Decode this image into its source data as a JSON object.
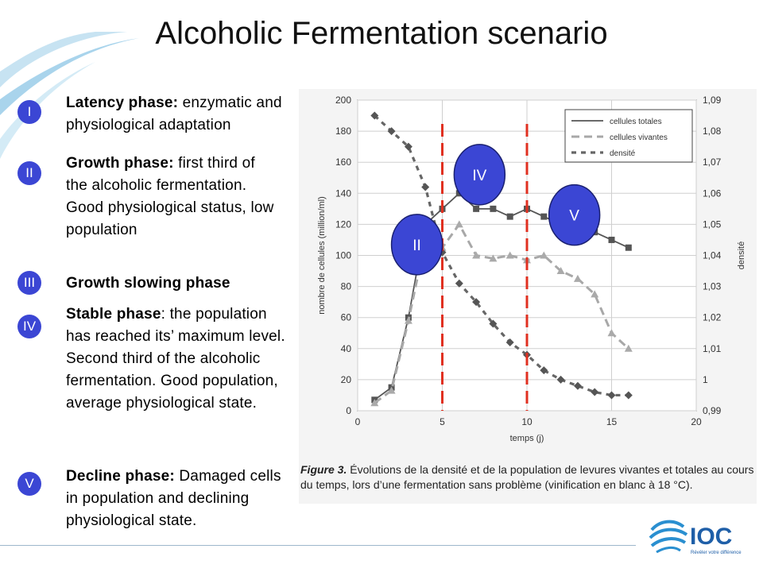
{
  "slide": {
    "title": "Alcoholic Fermentation scenario",
    "colors": {
      "badge": "#3b46d4",
      "red_line": "#e03020",
      "deco_blue": "#b8dcef"
    }
  },
  "phases": [
    {
      "numeral": "I",
      "heading": "Latency phase:",
      "body": " enzymatic and physiological adaptation"
    },
    {
      "numeral": "II",
      "heading": "Growth phase:",
      "body": " first third of the alcoholic fermentation. Good physiological status, low population"
    },
    {
      "numeral": "III",
      "heading": "Growth slowing  phase",
      "body": ""
    },
    {
      "numeral": "IV",
      "heading": "Stable phase",
      "body": ": the population has reached its’ maximum level. Second third of the alcoholic fermentation. Good population, average physiological state."
    },
    {
      "numeral": "V",
      "heading": "Decline phase:",
      "body": " Damaged cells in population and declining physiological state."
    }
  ],
  "figure_caption": {
    "label": "Figure 3.",
    "text": " Évolutions de la densité et de la population de levures vivantes et totales au cours du temps, lors d’une fermentation sans problème (vinification en blanc à 18 °C)."
  },
  "chart_data": {
    "type": "line",
    "xlabel": "temps (j)",
    "ylabel": "nombre de cellules (million/ml)",
    "y2label": "densité",
    "xlim": [
      0,
      20
    ],
    "ylim": [
      0,
      200
    ],
    "y2lim": [
      0.99,
      1.09
    ],
    "x_ticks": [
      0,
      5,
      10,
      15,
      20
    ],
    "y_ticks": [
      0,
      20,
      40,
      60,
      80,
      100,
      120,
      140,
      160,
      180,
      200
    ],
    "y2_ticks": [
      "0,99",
      "1",
      "1,01",
      "1,02",
      "1,03",
      "1,04",
      "1,05",
      "1,06",
      "1,07",
      "1,08",
      "1,09"
    ],
    "grid": true,
    "legend_position": "top-right",
    "series": [
      {
        "name": "cellules totales",
        "axis": "left",
        "style": "solid-square",
        "x": [
          1,
          2,
          3,
          4,
          5,
          6,
          7,
          8,
          9,
          10,
          11,
          12,
          13,
          14,
          15,
          16
        ],
        "y": [
          7,
          15,
          60,
          120,
          130,
          140,
          130,
          130,
          125,
          130,
          125,
          120,
          120,
          115,
          110,
          105
        ]
      },
      {
        "name": "cellules vivantes",
        "axis": "left",
        "style": "dash-triangle",
        "x": [
          1,
          2,
          3,
          4,
          5,
          6,
          7,
          8,
          9,
          10,
          11,
          12,
          13,
          14,
          15,
          16
        ],
        "y": [
          5,
          13,
          58,
          110,
          105,
          120,
          100,
          98,
          100,
          97,
          100,
          90,
          85,
          75,
          50,
          40
        ]
      },
      {
        "name": "densité",
        "axis": "right",
        "style": "dot-diamond",
        "x": [
          1,
          2,
          3,
          4,
          5,
          6,
          7,
          8,
          9,
          10,
          11,
          12,
          13,
          14,
          15,
          16
        ],
        "y": [
          1.085,
          1.08,
          1.075,
          1.062,
          1.041,
          1.031,
          1.025,
          1.018,
          1.012,
          1.008,
          1.003,
          1.0,
          0.998,
          0.996,
          0.995,
          0.995
        ]
      }
    ],
    "phase_boundaries_x": [
      5,
      10
    ],
    "phase_overlays": [
      {
        "label": "II",
        "x": 3.5,
        "y": 107
      },
      {
        "label": "IV",
        "x": 7.2,
        "y": 152
      },
      {
        "label": "V",
        "x": 12.8,
        "y": 126
      }
    ]
  },
  "logo": {
    "text": "IOC",
    "tagline": "Révéler votre différence"
  }
}
